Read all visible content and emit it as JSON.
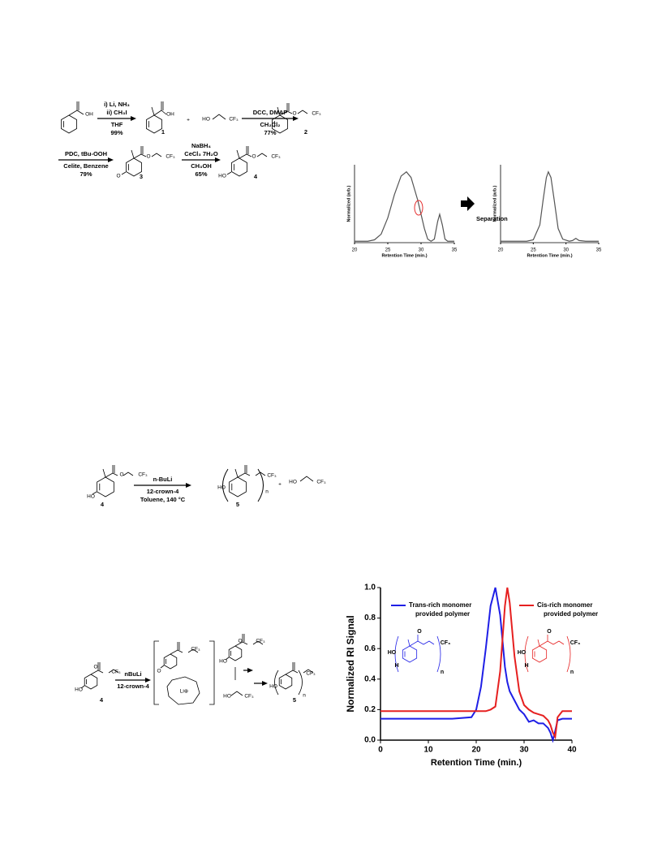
{
  "scheme_1": {
    "step_1": {
      "above": [
        "i) Li, NH₃",
        "ii) CH₃I"
      ],
      "below": [
        "THF",
        "99%"
      ]
    },
    "step_2": {
      "above": [
        "DCC, DMAP"
      ],
      "below": [
        "CH₂Cl₂",
        "77%"
      ]
    },
    "step_3": {
      "above": [
        "PDC, tBu-OOH"
      ],
      "below": [
        "Celite, Benzene",
        "79%"
      ]
    },
    "step_4": {
      "above": [
        "NaBH₄",
        "CeCl₃ 7H₂O"
      ],
      "below": [
        "CH₃OH",
        "65%"
      ]
    },
    "compound_labels": [
      "1",
      "2",
      "3",
      "4"
    ],
    "atoms": [
      "OH",
      "OH",
      "+",
      "HO",
      "CF₃",
      "O",
      "CF₃",
      "O",
      "O",
      "CF₃",
      "HO",
      "O",
      "CF₃"
    ]
  },
  "separation_label": "Separation",
  "scheme_2": {
    "step": {
      "above": [
        "n-BuLi"
      ],
      "below": [
        "12-crown-4",
        "Toluene, 140 °C"
      ]
    },
    "compound_labels": [
      "4",
      "5"
    ],
    "atoms": [
      "HO",
      "O",
      "CF₃",
      "HO",
      "n",
      "CF₃",
      "+",
      "HO",
      "CF₃"
    ]
  },
  "scheme_3": {
    "step": {
      "above": [
        "nBuLi"
      ],
      "below": [
        "12-crown-4"
      ]
    },
    "compound_labels": [
      "4",
      "5"
    ],
    "atoms": [
      "HO",
      "O",
      "CF₃",
      "O",
      "CF₃",
      "Li⊕",
      "HO",
      "O",
      "CF₃",
      "HO",
      "CF₃",
      "HO",
      "n",
      "CF₃"
    ]
  },
  "chart_data": [
    {
      "type": "line",
      "x_label": "Retention Time (min.)",
      "y_label": "Normalized (arb.)",
      "xlim": [
        20,
        35
      ],
      "xticks": [
        20,
        25,
        30,
        35
      ],
      "ylim": [
        0,
        1.1
      ],
      "color": "#555555",
      "x": [
        20,
        22,
        23,
        24,
        25,
        26,
        27,
        27.8,
        28.5,
        29.5,
        30.5,
        31,
        31.5,
        32,
        32.5,
        32.8,
        33.2,
        33.6,
        34,
        35
      ],
      "values": [
        0.02,
        0.02,
        0.04,
        0.12,
        0.35,
        0.68,
        0.94,
        1.0,
        0.92,
        0.6,
        0.2,
        0.05,
        0.02,
        0.05,
        0.3,
        0.4,
        0.25,
        0.05,
        0.02,
        0.02
      ]
    },
    {
      "type": "line",
      "x_label": "Retention Time (min.)",
      "y_label": "Normalized (arb.)",
      "xlim": [
        20,
        35
      ],
      "xticks": [
        20,
        25,
        30,
        35
      ],
      "ylim": [
        0,
        1.1
      ],
      "color": "#555555",
      "x": [
        20,
        24,
        25,
        26,
        26.5,
        27,
        27.3,
        27.7,
        28.2,
        28.8,
        29.5,
        30.5,
        31,
        31.5,
        32,
        33,
        35
      ],
      "values": [
        0.02,
        0.02,
        0.04,
        0.25,
        0.6,
        0.92,
        1.0,
        0.92,
        0.6,
        0.2,
        0.05,
        0.02,
        0.03,
        0.06,
        0.03,
        0.02,
        0.02
      ]
    },
    {
      "type": "line",
      "x_label": "Retention Time (min.)",
      "y_label": "Normalized RI Signal",
      "xlim": [
        0,
        40
      ],
      "xticks": [
        0,
        10,
        20,
        30,
        40
      ],
      "ylim": [
        0,
        1.0
      ],
      "yticks": [
        {
          "value": 0,
          "label": "0.0"
        },
        0.2,
        0.4,
        0.6,
        0.8,
        {
          "value": 1,
          "label": "1.0"
        }
      ],
      "x": [
        0,
        5,
        10,
        15,
        19,
        20,
        21,
        22,
        23,
        24,
        25,
        26,
        26.5,
        27,
        28,
        29,
        30,
        31,
        32,
        33,
        34,
        35,
        35.5,
        36,
        36.5,
        37,
        38,
        40
      ],
      "series": [
        {
          "name": "Trans-rich monomer provided polymer",
          "color": "#1f1fe6",
          "values": [
            0.14,
            0.14,
            0.14,
            0.14,
            0.15,
            0.2,
            0.35,
            0.6,
            0.88,
            1.0,
            0.82,
            0.48,
            0.38,
            0.32,
            0.26,
            0.2,
            0.17,
            0.12,
            0.13,
            0.11,
            0.11,
            0.08,
            0.05,
            0.0,
            0.06,
            0.13,
            0.14,
            0.14
          ]
        },
        {
          "name": "Cis-rich monomer provided polymer",
          "color": "#e62020",
          "values": [
            0.19,
            0.19,
            0.19,
            0.19,
            0.19,
            0.19,
            0.19,
            0.19,
            0.2,
            0.22,
            0.45,
            0.88,
            1.0,
            0.9,
            0.55,
            0.32,
            0.23,
            0.2,
            0.18,
            0.17,
            0.16,
            0.13,
            0.1,
            0.05,
            0.02,
            0.15,
            0.19,
            0.19
          ]
        }
      ],
      "insets": [
        [
          "HO",
          "H",
          "O",
          "CF₃",
          "n"
        ],
        [
          "HO",
          "H",
          "O",
          "CF₃",
          "n"
        ]
      ]
    }
  ]
}
